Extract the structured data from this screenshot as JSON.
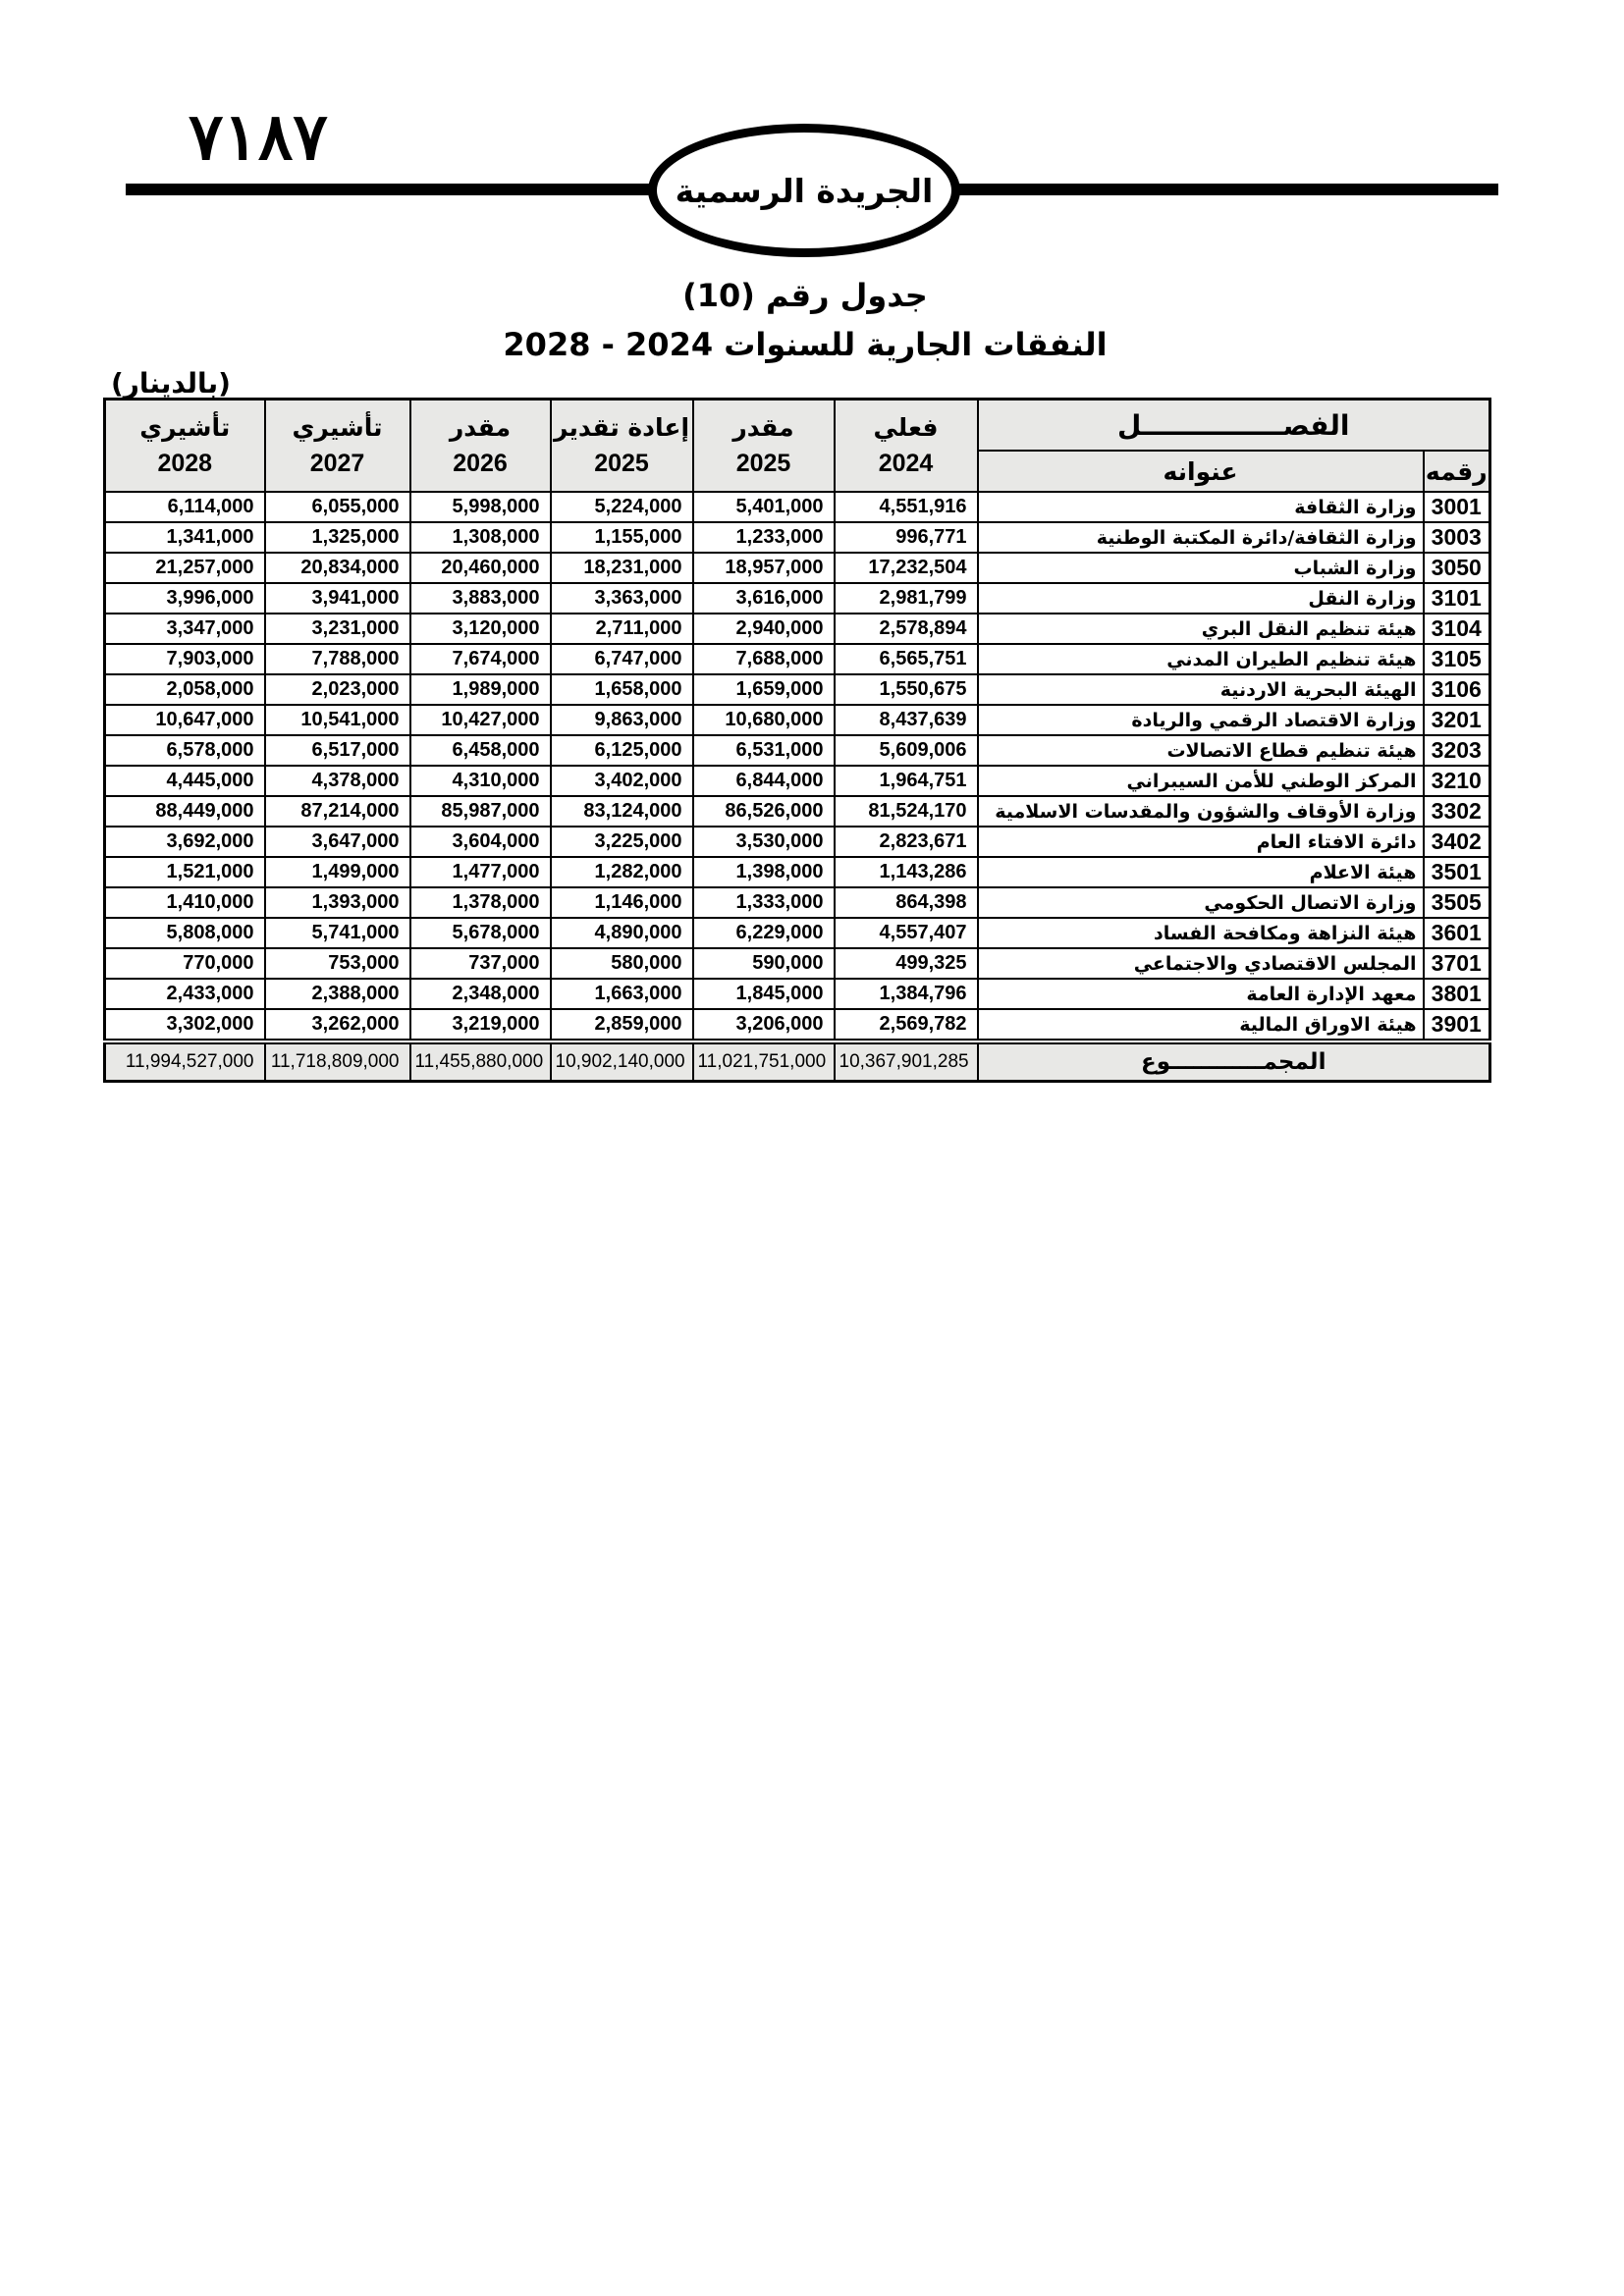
{
  "page": {
    "page_number": "٧١٨٧",
    "banner": "الجريدة الرسمية",
    "title": "جدول رقم (10)",
    "subtitle": "النفقات الجارية للسنوات 2024 - 2028",
    "currency_note": "(بالدينار)"
  },
  "table": {
    "group_header": "الفصـــــــــــــــل",
    "col_number_label": "رقمه",
    "col_title_label": "عنوانه",
    "year_columns": [
      {
        "label": "فعلي",
        "year": "2024"
      },
      {
        "label": "مقدر",
        "year": "2025"
      },
      {
        "label": "إعادة تقدير",
        "year": "2025"
      },
      {
        "label": "مقدر",
        "year": "2026"
      },
      {
        "label": "تأشيري",
        "year": "2027"
      },
      {
        "label": "تأشيري",
        "year": "2028"
      }
    ],
    "rows": [
      {
        "code": "3001",
        "name": "وزارة الثقافة",
        "values": [
          "4,551,916",
          "5,401,000",
          "5,224,000",
          "5,998,000",
          "6,055,000",
          "6,114,000"
        ]
      },
      {
        "code": "3003",
        "name": "وزارة الثقافة/دائرة المكتبة الوطنية",
        "values": [
          "996,771",
          "1,233,000",
          "1,155,000",
          "1,308,000",
          "1,325,000",
          "1,341,000"
        ]
      },
      {
        "code": "3050",
        "name": "وزارة الشباب",
        "values": [
          "17,232,504",
          "18,957,000",
          "18,231,000",
          "20,460,000",
          "20,834,000",
          "21,257,000"
        ]
      },
      {
        "code": "3101",
        "name": "وزارة النقل",
        "values": [
          "2,981,799",
          "3,616,000",
          "3,363,000",
          "3,883,000",
          "3,941,000",
          "3,996,000"
        ]
      },
      {
        "code": "3104",
        "name": "هيئة تنظيم النقل البري",
        "values": [
          "2,578,894",
          "2,940,000",
          "2,711,000",
          "3,120,000",
          "3,231,000",
          "3,347,000"
        ]
      },
      {
        "code": "3105",
        "name": "هيئة تنظيم الطيران المدني",
        "values": [
          "6,565,751",
          "7,688,000",
          "6,747,000",
          "7,674,000",
          "7,788,000",
          "7,903,000"
        ]
      },
      {
        "code": "3106",
        "name": "الهيئة البحرية الاردنية",
        "values": [
          "1,550,675",
          "1,659,000",
          "1,658,000",
          "1,989,000",
          "2,023,000",
          "2,058,000"
        ]
      },
      {
        "code": "3201",
        "name": "وزارة الاقتصاد الرقمي والريادة",
        "values": [
          "8,437,639",
          "10,680,000",
          "9,863,000",
          "10,427,000",
          "10,541,000",
          "10,647,000"
        ]
      },
      {
        "code": "3203",
        "name": "هيئة تنظيم قطاع الاتصالات",
        "values": [
          "5,609,006",
          "6,531,000",
          "6,125,000",
          "6,458,000",
          "6,517,000",
          "6,578,000"
        ]
      },
      {
        "code": "3210",
        "name": "المركز الوطني للأمن السيبراني",
        "values": [
          "1,964,751",
          "6,844,000",
          "3,402,000",
          "4,310,000",
          "4,378,000",
          "4,445,000"
        ]
      },
      {
        "code": "3302",
        "name": "وزارة الأوقاف والشؤون والمقدسات الاسلامية",
        "values": [
          "81,524,170",
          "86,526,000",
          "83,124,000",
          "85,987,000",
          "87,214,000",
          "88,449,000"
        ]
      },
      {
        "code": "3402",
        "name": "دائرة الافتاء العام",
        "values": [
          "2,823,671",
          "3,530,000",
          "3,225,000",
          "3,604,000",
          "3,647,000",
          "3,692,000"
        ]
      },
      {
        "code": "3501",
        "name": "هيئة الاعلام",
        "values": [
          "1,143,286",
          "1,398,000",
          "1,282,000",
          "1,477,000",
          "1,499,000",
          "1,521,000"
        ]
      },
      {
        "code": "3505",
        "name": "وزارة الاتصال الحكومي",
        "values": [
          "864,398",
          "1,333,000",
          "1,146,000",
          "1,378,000",
          "1,393,000",
          "1,410,000"
        ]
      },
      {
        "code": "3601",
        "name": "هيئة النزاهة ومكافحة الفساد",
        "values": [
          "4,557,407",
          "6,229,000",
          "4,890,000",
          "5,678,000",
          "5,741,000",
          "5,808,000"
        ]
      },
      {
        "code": "3701",
        "name": "المجلس الاقتصادي والاجتماعي",
        "values": [
          "499,325",
          "590,000",
          "580,000",
          "737,000",
          "753,000",
          "770,000"
        ]
      },
      {
        "code": "3801",
        "name": "معهد الإدارة العامة",
        "values": [
          "1,384,796",
          "1,845,000",
          "1,663,000",
          "2,348,000",
          "2,388,000",
          "2,433,000"
        ]
      },
      {
        "code": "3901",
        "name": "هيئة الاوراق المالية",
        "values": [
          "2,569,782",
          "3,206,000",
          "2,859,000",
          "3,219,000",
          "3,262,000",
          "3,302,000"
        ]
      }
    ],
    "total_label": "المجمــــــــــــوع",
    "totals": [
      "10,367,901,285",
      "11,021,751,000",
      "10,902,140,000",
      "11,455,880,000",
      "11,718,809,000",
      "11,994,527,000"
    ]
  }
}
